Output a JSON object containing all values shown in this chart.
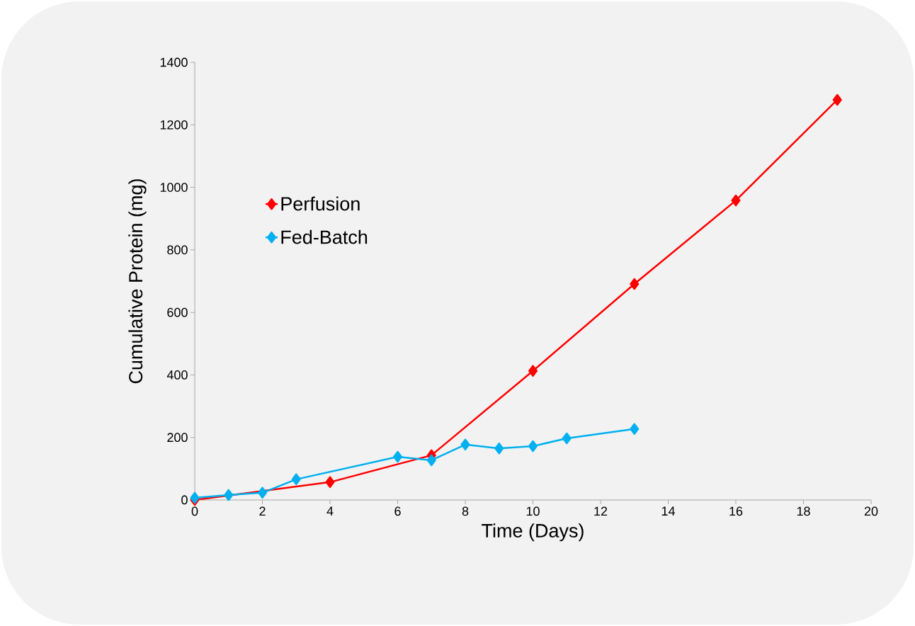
{
  "chart_data": {
    "type": "line",
    "xlabel": "Time (Days)",
    "ylabel": "Cumulative Protein (mg)",
    "series": [
      {
        "name": "Perfusion",
        "color": "#ff0000",
        "x": [
          0,
          4,
          7,
          10,
          13,
          16,
          19
        ],
        "values": [
          0,
          57,
          143,
          413,
          691,
          958,
          1280
        ]
      },
      {
        "name": "Fed-Batch",
        "color": "#00b0f0",
        "x": [
          0,
          1,
          2,
          3,
          6,
          7,
          8,
          9,
          10,
          11,
          13
        ],
        "values": [
          7,
          16,
          23,
          66,
          138,
          127,
          177,
          165,
          172,
          197,
          227
        ]
      }
    ],
    "xlim": [
      0,
      20
    ],
    "xticks": [
      0,
      2,
      4,
      6,
      8,
      10,
      12,
      14,
      16,
      18,
      20
    ],
    "ylim": [
      0,
      1400
    ],
    "yticks": [
      0,
      200,
      400,
      600,
      800,
      1000,
      1200,
      1400
    ],
    "grid": false,
    "legend": "left",
    "marker": "diamond",
    "line_style": "solid"
  }
}
